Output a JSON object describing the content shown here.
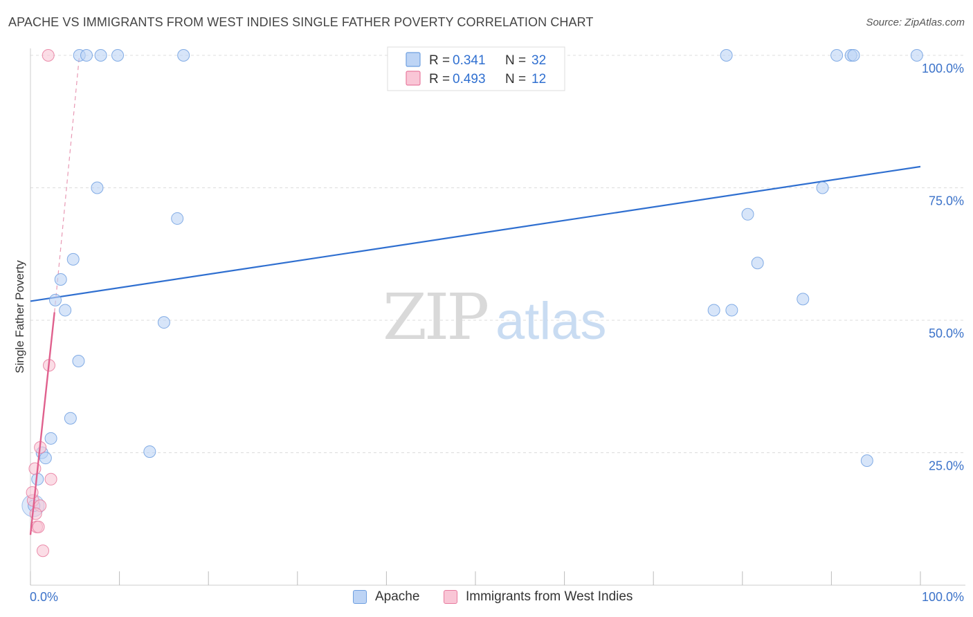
{
  "chart_data": {
    "type": "scatter",
    "title": "APACHE VS IMMIGRANTS FROM WEST INDIES SINGLE FATHER POVERTY CORRELATION CHART",
    "source": "Source: ZipAtlas.com",
    "xlabel": "",
    "ylabel": "Single Father Poverty",
    "xlim": [
      0,
      100
    ],
    "ylim": [
      0,
      103
    ],
    "x_tick_labels": [
      "0.0%",
      "100.0%"
    ],
    "y_ticks": [
      25,
      50,
      75,
      100
    ],
    "y_tick_labels": [
      "25.0%",
      "50.0%",
      "75.0%",
      "100.0%"
    ],
    "watermark": {
      "zip": "ZIP",
      "atlas": "atlas"
    },
    "stats_legend": [
      {
        "r_label": "R =",
        "r_value": "0.341",
        "n_label": "N =",
        "n_value": "32"
      },
      {
        "r_label": "R =",
        "r_value": "0.493",
        "n_label": "N =",
        "n_value": "12"
      }
    ],
    "series": [
      {
        "name": "Apache",
        "color": "#6e9fe0",
        "fill": "#bdd4f5",
        "points": [
          [
            5.5,
            100
          ],
          [
            6.3,
            100
          ],
          [
            7.9,
            100
          ],
          [
            9.8,
            100
          ],
          [
            17.2,
            100
          ],
          [
            78.2,
            100
          ],
          [
            90.6,
            100
          ],
          [
            92.2,
            100
          ],
          [
            92.5,
            100
          ],
          [
            99.6,
            100
          ],
          [
            7.5,
            75
          ],
          [
            16.5,
            69.2
          ],
          [
            4.8,
            61.5
          ],
          [
            3.4,
            57.7
          ],
          [
            2.8,
            53.8
          ],
          [
            3.9,
            51.9
          ],
          [
            15.0,
            49.6
          ],
          [
            5.4,
            42.3
          ],
          [
            4.5,
            31.5
          ],
          [
            2.3,
            27.7
          ],
          [
            13.4,
            25.2
          ],
          [
            1.3,
            25
          ],
          [
            1.7,
            24
          ],
          [
            0.8,
            20
          ],
          [
            0.4,
            15
          ],
          [
            76.8,
            51.9
          ],
          [
            78.8,
            51.9
          ],
          [
            80.6,
            70
          ],
          [
            81.7,
            60.8
          ],
          [
            86.8,
            54
          ],
          [
            89.0,
            75
          ],
          [
            94.0,
            23.5
          ]
        ],
        "trend": {
          "x0": 0,
          "y0": 53.6,
          "x1": 100,
          "y1": 79.0
        }
      },
      {
        "name": "Immigrants from West Indies",
        "color": "#e87a9e",
        "fill": "#f9c6d6",
        "points": [
          [
            2.0,
            100
          ],
          [
            2.1,
            41.5
          ],
          [
            1.1,
            26
          ],
          [
            2.3,
            20
          ],
          [
            0.5,
            22
          ],
          [
            0.3,
            16
          ],
          [
            1.1,
            15
          ],
          [
            0.7,
            11
          ],
          [
            0.9,
            11
          ],
          [
            1.4,
            6.5
          ],
          [
            0.2,
            17.5
          ],
          [
            0.6,
            13.5
          ]
        ],
        "trend": {
          "x0": 0,
          "y0": 9.5,
          "x1": 2.7,
          "y1": 51.5
        },
        "trend_ext": {
          "x0": 2.7,
          "y0": 51.5,
          "x1": 5.5,
          "y1": 100
        }
      }
    ]
  }
}
